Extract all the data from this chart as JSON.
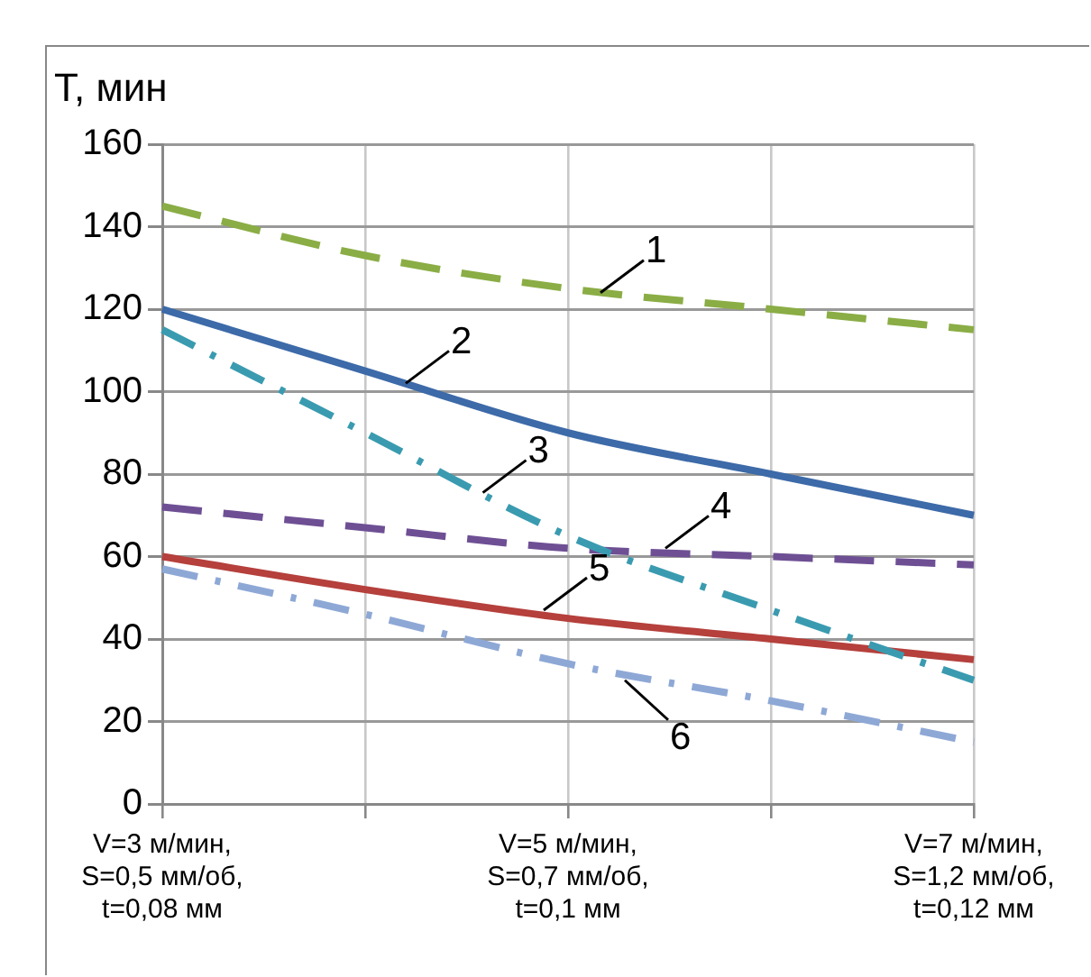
{
  "chart_data": {
    "type": "line",
    "ylabel": "T, мин",
    "categories": [
      "V=3 м/мин,\nS=0,5 мм/об,\nt=0,08 мм",
      null,
      "V=5 м/мин,\nS=0,7 мм/об,\nt=0,1 мм",
      null,
      "V=7 м/мин,\nS=1,2 мм/об,\nt=0,12 мм"
    ],
    "ylim": [
      0,
      160
    ],
    "yticks": [
      0,
      20,
      40,
      60,
      80,
      100,
      120,
      140,
      160
    ],
    "grid": true,
    "legend": false,
    "marker": "none",
    "series": [
      {
        "color": "#8aad45",
        "line_style": "dashed",
        "values": [
          145,
          133,
          125,
          120,
          115
        ]
      },
      {
        "color": "#3d6aa8",
        "line_style": "solid",
        "values": [
          120,
          105,
          90,
          80,
          70
        ]
      },
      {
        "color": "#3a9bb0",
        "line_style": "dashdot",
        "values": [
          115,
          90,
          65,
          47,
          30
        ]
      },
      {
        "color": "#6e4f94",
        "line_style": "dashed",
        "values": [
          72,
          67,
          62,
          60,
          58
        ]
      },
      {
        "color": "#b5403c",
        "line_style": "solid",
        "values": [
          60,
          52,
          45,
          40,
          35
        ]
      },
      {
        "color": "#8ea8d6",
        "line_style": "dashdot",
        "values": [
          57,
          46,
          34,
          25,
          15
        ]
      }
    ],
    "annotations": [
      {
        "text": "1",
        "y": 124
      },
      "2",
      "3",
      {
        "text": "4",
        "y": 62
      },
      {
        "text": "5",
        "y": 47
      },
      {
        "text": "6",
        "y": 30
      }
    ]
  }
}
